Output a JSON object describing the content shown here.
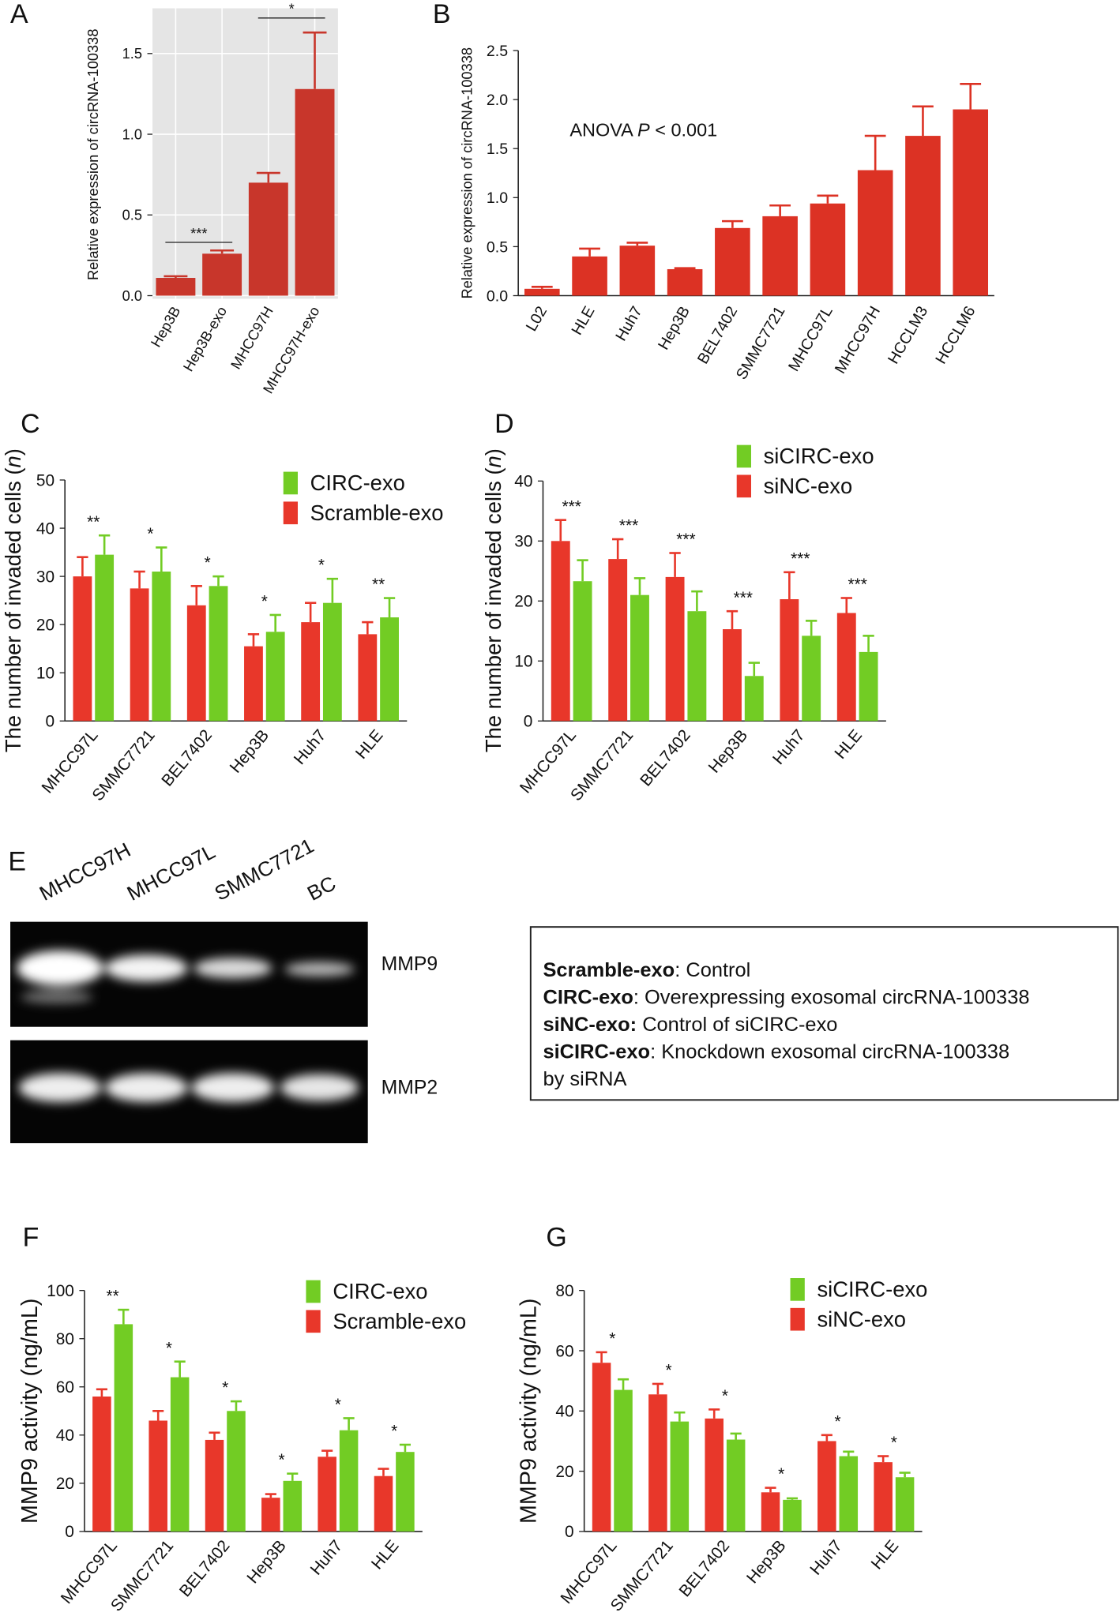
{
  "chart_data": [
    {
      "type": "bar",
      "panel": "A",
      "y_label": "Relative expression of circRNA-100338",
      "categories": [
        "Hep3B",
        "Hep3B-exo",
        "MHCC97H",
        "MHCC97H-exo"
      ],
      "values": [
        0.11,
        0.26,
        0.7,
        1.28
      ],
      "errors": [
        0.01,
        0.02,
        0.06,
        0.35
      ],
      "color": "#c8362b",
      "ylim": [
        0,
        1.78
      ],
      "yticks": [
        {
          "value": 0,
          "label": "0.0"
        },
        0.5,
        {
          "value": 1,
          "label": "1.0"
        },
        1.5
      ],
      "grid": true,
      "background": "#e5e5e5",
      "significance": [
        {
          "label": "***",
          "y": 0.33
        },
        {
          "label": "*",
          "y": 1.72
        }
      ]
    },
    {
      "type": "bar",
      "panel": "B",
      "y_label": "Relative expression of circRNA-100338",
      "categories": [
        "L02",
        "HLE",
        "Huh7",
        "Hep3B",
        "BEL7402",
        "SMMC7721",
        "MHCC97L",
        "MHCC97H",
        "HCCLM3",
        "HCCLM6"
      ],
      "values": [
        0.07,
        0.4,
        0.51,
        0.27,
        0.69,
        0.81,
        0.94,
        1.28,
        1.63,
        1.9
      ],
      "errors": [
        0.02,
        0.08,
        0.03,
        0.01,
        0.07,
        0.11,
        0.08,
        0.35,
        0.3,
        0.26
      ],
      "color": "#dc3224",
      "ylim": [
        0,
        2.5
      ],
      "yticks": [
        {
          "value": 0,
          "label": "0.0"
        },
        0.5,
        {
          "value": 1,
          "label": "1.0"
        },
        1.5,
        {
          "value": 2,
          "label": "2.0"
        },
        2.5
      ],
      "annotation": [
        "ANOVA ",
        "P",
        " < 0.001"
      ]
    },
    {
      "type": "bar",
      "panel": "C",
      "y_label": [
        "The number of invaded cells (",
        "n",
        ")"
      ],
      "categories": [
        "MHCC97L",
        "SMMC7721",
        "BEL7402",
        "Hep3B",
        "Huh7",
        "HLE"
      ],
      "series": [
        {
          "name": "Scramble-exo",
          "color": "#e8372a",
          "values": [
            30,
            27.5,
            24,
            15.5,
            20.5,
            18
          ],
          "errors": [
            4,
            3.5,
            4,
            2.5,
            4,
            2.5
          ]
        },
        {
          "name": "CIRC-exo",
          "color": "#72cc24",
          "values": [
            34.5,
            31,
            28,
            18.5,
            24.5,
            21.5
          ],
          "errors": [
            4,
            5,
            2,
            3.5,
            5,
            4
          ]
        }
      ],
      "stars": [
        "**",
        "*",
        "*",
        "*",
        "*",
        "**"
      ],
      "ylim": [
        0,
        50
      ],
      "yticks": [
        0,
        10,
        20,
        30,
        40,
        50
      ]
    },
    {
      "type": "bar",
      "panel": "D",
      "y_label": [
        "The number of invaded cells (",
        "n",
        ")"
      ],
      "categories": [
        "MHCC97L",
        "SMMC7721",
        "BEL7402",
        "Hep3B",
        "Huh7",
        "HLE"
      ],
      "series": [
        {
          "name": "siNC-exo",
          "color": "#e8372a",
          "values": [
            30,
            27,
            24,
            15.3,
            20.3,
            18
          ],
          "errors": [
            3.5,
            3.3,
            4,
            3,
            4.5,
            2.5
          ]
        },
        {
          "name": "siCIRC-exo",
          "color": "#72cc24",
          "values": [
            23.3,
            21,
            18.3,
            7.5,
            14.2,
            11.5
          ],
          "errors": [
            3.5,
            2.8,
            3.3,
            2.2,
            2.5,
            2.7
          ]
        }
      ],
      "stars": [
        "***",
        "***",
        "***",
        "***",
        "***",
        "***"
      ],
      "ylim": [
        0,
        40
      ],
      "yticks": [
        0,
        10,
        20,
        30,
        40
      ]
    },
    {
      "type": "bar",
      "panel": "F",
      "y_label": "MMP9 activity (ng/mL)",
      "categories": [
        "MHCC97L",
        "SMMC7721",
        "BEL7402",
        "Hep3B",
        "Huh7",
        "HLE"
      ],
      "series": [
        {
          "name": "Scramble-exo",
          "color": "#e8372a",
          "values": [
            56,
            46,
            38,
            14,
            31,
            23
          ],
          "errors": [
            3,
            4,
            3,
            1.5,
            2.5,
            3
          ]
        },
        {
          "name": "CIRC-exo",
          "color": "#72cc24",
          "values": [
            86,
            64,
            50,
            21,
            42,
            33
          ],
          "errors": [
            6,
            6.5,
            4,
            3,
            5,
            3
          ]
        }
      ],
      "stars": [
        "**",
        "*",
        "*",
        "*",
        "*",
        "*"
      ],
      "ylim": [
        0,
        100
      ],
      "yticks": [
        0,
        20,
        40,
        60,
        80,
        100
      ]
    },
    {
      "type": "bar",
      "panel": "G",
      "y_label": "MMP9 activity (ng/mL)",
      "categories": [
        "MHCC97L",
        "SMMC7721",
        "BEL7402",
        "Hep3B",
        "Huh7",
        "HLE"
      ],
      "series": [
        {
          "name": "siNC-exo",
          "color": "#e8372a",
          "values": [
            56,
            45.5,
            37.5,
            13,
            30,
            23
          ],
          "errors": [
            3.5,
            3.5,
            3,
            1.5,
            2,
            2
          ]
        },
        {
          "name": "siCIRC-exo",
          "color": "#72cc24",
          "values": [
            47,
            36.5,
            30.5,
            10.5,
            25,
            18
          ],
          "errors": [
            3.5,
            3,
            2,
            0.5,
            1.5,
            1.5
          ]
        }
      ],
      "stars": [
        "*",
        "*",
        "*",
        "*",
        "*",
        "*"
      ],
      "ylim": [
        0,
        80
      ],
      "yticks": [
        0,
        20,
        40,
        60,
        80
      ]
    }
  ],
  "gel": {
    "panel": "E",
    "lanes": [
      "MHCC97H",
      "MHCC97L",
      "SMMC7721",
      "BC"
    ],
    "bands": [
      "MMP9",
      "MMP2"
    ]
  },
  "legend_box": {
    "lines": [
      {
        "bold": "Scramble-exo",
        "text": ": Control"
      },
      {
        "bold": "CIRC-exo",
        "text": ": Overexpressing exosomal circRNA-100338"
      },
      {
        "bold": "siNC-exo:",
        "text": " Control of siCIRC-exo"
      },
      {
        "bold": "siCIRC-exo",
        "text": ": Knockdown exosomal circRNA-100338"
      },
      {
        "text": "by siRNA"
      }
    ]
  }
}
